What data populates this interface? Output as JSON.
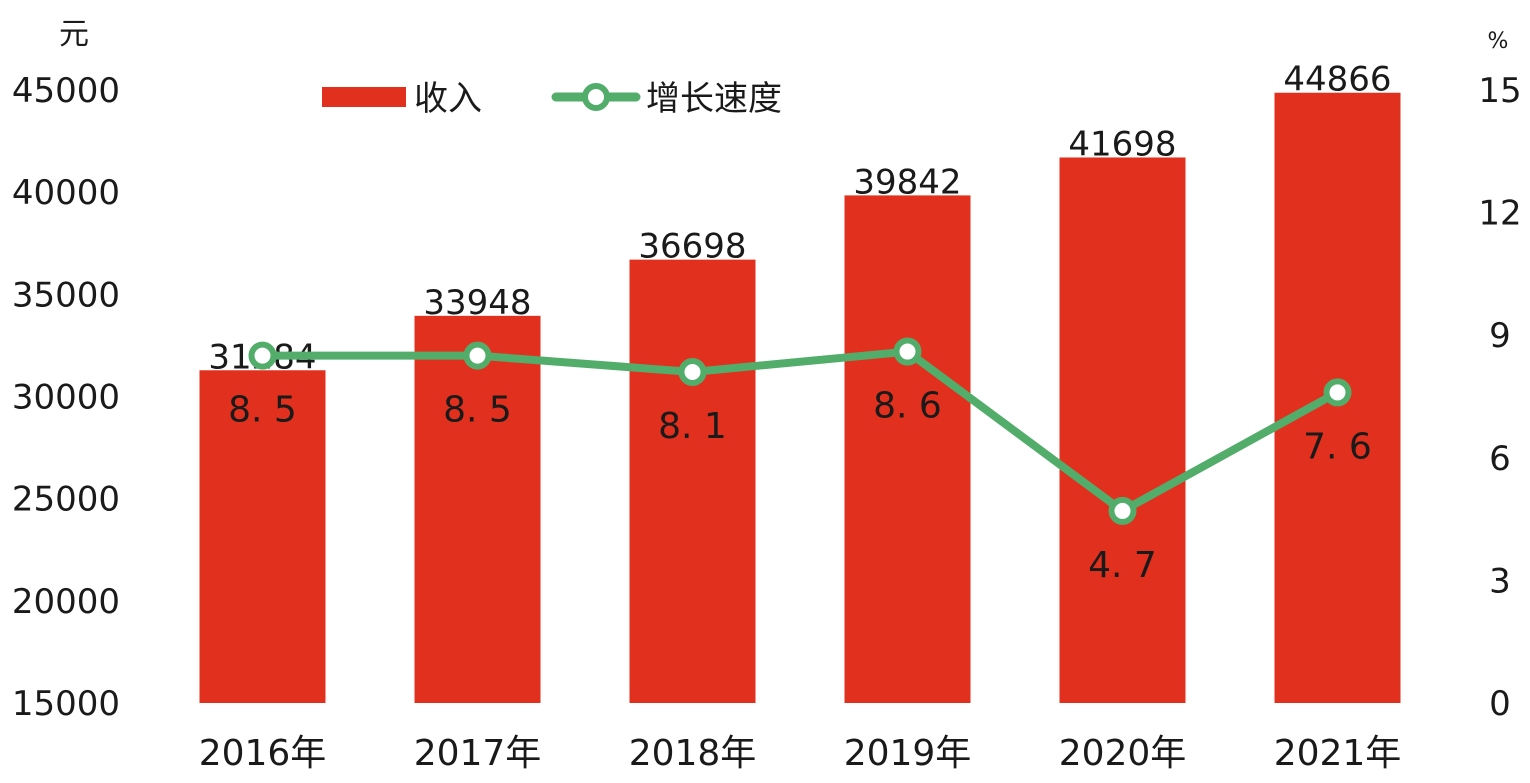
{
  "chart_data": {
    "type": "bar",
    "categories": [
      "2016年",
      "2017年",
      "2018年",
      "2019年",
      "2020年",
      "2021年"
    ],
    "series": [
      {
        "name": "收入",
        "type": "bar",
        "axis": "left",
        "color": "#e1301e",
        "values": [
          31284,
          33948,
          36698,
          39842,
          41698,
          44866
        ],
        "labels": [
          "31284",
          "33948",
          "36698",
          "39842",
          "41698",
          "44866"
        ]
      },
      {
        "name": "增长速度",
        "type": "line",
        "axis": "right",
        "color": "#52ad6b",
        "values": [
          8.5,
          8.5,
          8.1,
          8.6,
          4.7,
          7.6
        ],
        "labels": [
          "8. 5",
          "8. 5",
          "8. 1",
          "8. 6",
          "4. 7",
          "7. 6"
        ]
      }
    ],
    "y_left": {
      "unit": "元",
      "ylim": [
        15000,
        45000
      ],
      "ticks": [
        "15000",
        "20000",
        "25000",
        "30000",
        "35000",
        "40000",
        "45000"
      ]
    },
    "y_right": {
      "unit": "%",
      "ylim": [
        0,
        15
      ],
      "ticks": [
        "0",
        "3",
        "6",
        "9",
        "12",
        "15"
      ]
    },
    "grid": false,
    "legend": "top-left"
  }
}
